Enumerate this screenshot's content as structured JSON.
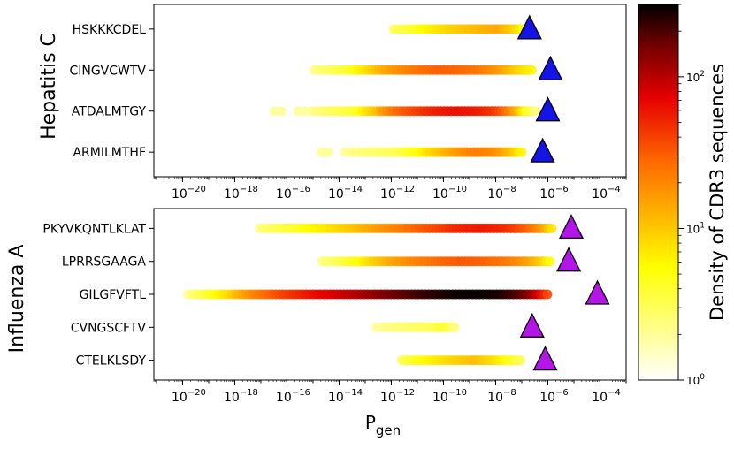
{
  "chart_data": {
    "type": "scatter",
    "xlabel_main": "P",
    "xlabel_sub": "gen",
    "xscale": "log10",
    "xlim_log10": [
      -21.1,
      -3.0
    ],
    "tick_exponents": [
      -20,
      -18,
      -16,
      -14,
      -12,
      -10,
      -8,
      -6,
      -4
    ],
    "tick_base": "10",
    "colorbar": {
      "label": "Density of CDR3 sequences",
      "scale": "log10",
      "range": [
        1,
        300
      ],
      "ticks": [
        {
          "base": "10",
          "exp": "0",
          "value": 1
        },
        {
          "base": "10",
          "exp": "1",
          "value": 10
        },
        {
          "base": "10",
          "exp": "2",
          "value": 100
        }
      ],
      "colormap": "hot_r"
    },
    "panels": [
      {
        "name": "Hepatitis C",
        "marker_color": "#1414e6",
        "epitopes": [
          {
            "label": "HSKKKCDEL",
            "marker_log10": -6.7,
            "points": [
              [
                -11.9,
                3
              ],
              [
                -11.2,
                4
              ],
              [
                -10.6,
                6
              ],
              [
                -10.0,
                8
              ],
              [
                -9.3,
                10
              ],
              [
                -8.6,
                12
              ],
              [
                -7.9,
                14
              ],
              [
                -7.3,
                9
              ],
              [
                -6.9,
                5
              ]
            ]
          },
          {
            "label": "CINGVCWTV",
            "marker_log10": -5.9,
            "points": [
              [
                -15.2,
                2
              ],
              [
                -14.3,
                3
              ],
              [
                -13.6,
                4
              ],
              [
                -12.9,
                8
              ],
              [
                -12.2,
                14
              ],
              [
                -11.5,
                20
              ],
              [
                -10.8,
                26
              ],
              [
                -10.1,
                30
              ],
              [
                -9.4,
                28
              ],
              [
                -8.7,
                24
              ],
              [
                -8.0,
                18
              ],
              [
                -7.3,
                10
              ],
              [
                -6.6,
                6
              ]
            ]
          },
          {
            "label": "ATDALMTGY",
            "marker_log10": -6.0,
            "points": [
              [
                -16.6,
                2
              ],
              [
                -15.1,
                2
              ],
              [
                -14.3,
                3
              ],
              [
                -13.4,
                4
              ],
              [
                -12.6,
                10
              ],
              [
                -11.8,
                26
              ],
              [
                -11.0,
                40
              ],
              [
                -10.2,
                55
              ],
              [
                -9.5,
                62
              ],
              [
                -8.8,
                58
              ],
              [
                -8.1,
                45
              ],
              [
                -7.4,
                18
              ],
              [
                -6.9,
                5
              ],
              [
                -6.4,
                2
              ]
            ]
          },
          {
            "label": "ARMILMTHF",
            "marker_log10": -6.2,
            "points": [
              [
                -15.2,
                2
              ],
              [
                -14.0,
                2
              ],
              [
                -11.8,
                3
              ],
              [
                -11.0,
                5
              ],
              [
                -10.2,
                10
              ],
              [
                -9.5,
                16
              ],
              [
                -8.8,
                22
              ],
              [
                -8.1,
                20
              ],
              [
                -7.5,
                12
              ],
              [
                -7.0,
                6
              ]
            ]
          }
        ]
      },
      {
        "name": "Influenza A",
        "marker_color": "#b316e6",
        "epitopes": [
          {
            "label": "PKYVKQNTLKLAT",
            "marker_log10": -5.1,
            "points": [
              [
                -17.3,
                2
              ],
              [
                -16.5,
                3
              ],
              [
                -15.7,
                4
              ],
              [
                -14.9,
                6
              ],
              [
                -14.1,
                8
              ],
              [
                -13.3,
                11
              ],
              [
                -12.5,
                16
              ],
              [
                -11.7,
                22
              ],
              [
                -10.9,
                30
              ],
              [
                -10.1,
                40
              ],
              [
                -9.3,
                52
              ],
              [
                -8.5,
                58
              ],
              [
                -7.7,
                50
              ],
              [
                -7.0,
                35
              ],
              [
                -6.3,
                18
              ],
              [
                -5.8,
                6
              ]
            ]
          },
          {
            "label": "LPRRSGAAGA",
            "marker_log10": -5.2,
            "points": [
              [
                -14.9,
                2
              ],
              [
                -14.1,
                3
              ],
              [
                -13.3,
                5
              ],
              [
                -12.5,
                10
              ],
              [
                -11.7,
                16
              ],
              [
                -10.9,
                22
              ],
              [
                -10.1,
                28
              ],
              [
                -9.3,
                32
              ],
              [
                -8.5,
                30
              ],
              [
                -7.7,
                25
              ],
              [
                -7.0,
                18
              ],
              [
                -6.3,
                10
              ],
              [
                -5.9,
                5
              ]
            ]
          },
          {
            "label": "GILGFVFTL",
            "marker_log10": -4.1,
            "points": [
              [
                -19.8,
                2
              ],
              [
                -19.0,
                4
              ],
              [
                -18.2,
                8
              ],
              [
                -17.4,
                18
              ],
              [
                -16.6,
                30
              ],
              [
                -15.8,
                45
              ],
              [
                -15.0,
                62
              ],
              [
                -14.2,
                80
              ],
              [
                -13.4,
                100
              ],
              [
                -12.6,
                130
              ],
              [
                -11.8,
                170
              ],
              [
                -11.0,
                210
              ],
              [
                -10.2,
                250
              ],
              [
                -9.4,
                280
              ],
              [
                -8.6,
                290
              ],
              [
                -7.8,
                260
              ],
              [
                -7.0,
                180
              ],
              [
                -6.3,
                70
              ],
              [
                -5.9,
                25
              ]
            ]
          },
          {
            "label": "CVNGSCFTV",
            "marker_log10": -6.6,
            "points": [
              [
                -12.7,
                2
              ],
              [
                -10.5,
                3
              ],
              [
                -9.9,
                4
              ],
              [
                -9.5,
                2
              ]
            ]
          },
          {
            "label": "CTELKLSDY",
            "marker_log10": -6.1,
            "points": [
              [
                -11.6,
                3
              ],
              [
                -10.9,
                5
              ],
              [
                -10.2,
                7
              ],
              [
                -9.5,
                9
              ],
              [
                -8.8,
                11
              ],
              [
                -8.1,
                8
              ],
              [
                -7.5,
                5
              ],
              [
                -7.0,
                3
              ]
            ]
          }
        ]
      }
    ]
  }
}
